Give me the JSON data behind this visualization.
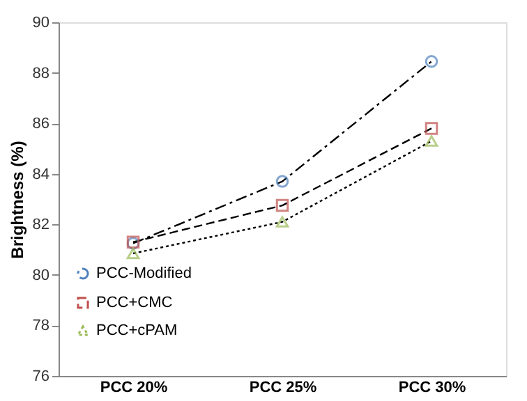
{
  "chart_data": {
    "type": "line",
    "ylabel": "Brightness (%)",
    "categories": [
      "PCC 20%",
      "PCC 25%",
      "PCC 30%"
    ],
    "series": [
      {
        "name": "PCC-Modified",
        "color": "#4f81bd",
        "values": [
          81.25,
          83.7,
          88.45
        ],
        "marker": "circle",
        "line_style": "dashdot"
      },
      {
        "name": "PCC+CMC",
        "color": "#c0504d",
        "values": [
          81.3,
          82.75,
          85.8
        ],
        "marker": "square",
        "line_style": "dashed"
      },
      {
        "name": "PCC+cPAM",
        "color": "#9bbb59",
        "values": [
          80.85,
          82.1,
          85.3
        ],
        "marker": "triangle",
        "line_style": "dotted"
      }
    ],
    "ylim": [
      76,
      90
    ],
    "yticks": [
      76,
      78,
      80,
      82,
      84,
      86,
      88,
      90
    ],
    "grid": false,
    "legend": "left"
  }
}
